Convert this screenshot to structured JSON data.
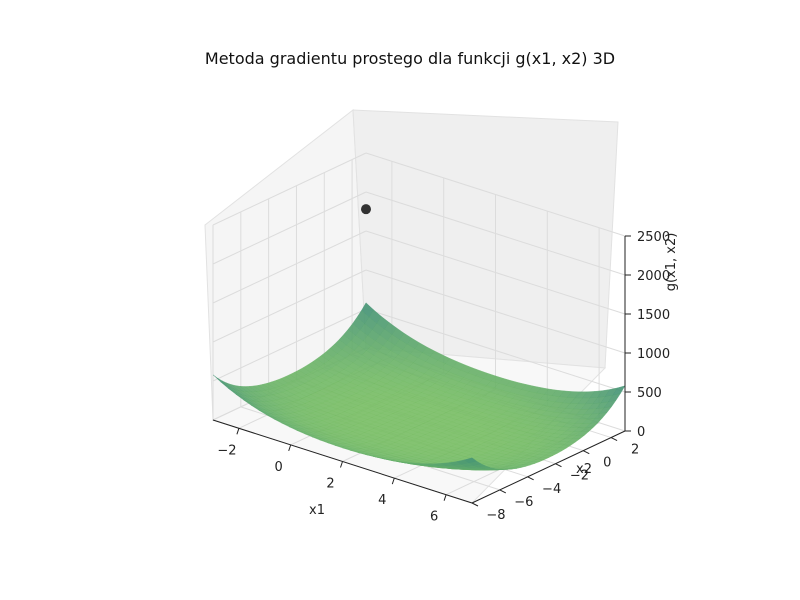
{
  "chart_data": {
    "type": "surface3d",
    "title": "Metoda gradientu prostego dla funkcji g(x1, x2) 3D",
    "xlabel": "x1",
    "ylabel": "x2",
    "zlabel": "g(x1, x2)",
    "xlim": [
      -3,
      7
    ],
    "ylim": [
      -8,
      3
    ],
    "zlim": [
      0,
      2500
    ],
    "x_ticks": [
      "−2",
      "0",
      "2",
      "4",
      "6"
    ],
    "y_ticks": [
      "−8",
      "−6",
      "−4",
      "−2",
      "0",
      "2"
    ],
    "z_ticks": [
      "0",
      "500",
      "1000",
      "1500",
      "2000",
      "2500"
    ],
    "colormap": "viridis",
    "grid": true,
    "marker": {
      "x1": -3,
      "x2": 3,
      "g": 1780,
      "color": "#111111"
    }
  }
}
